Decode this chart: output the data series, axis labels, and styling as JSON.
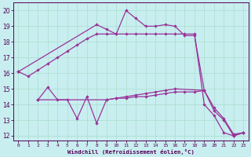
{
  "xlabel": "Windchill (Refroidissement éolien,°C)",
  "bg_color": "#c8eef0",
  "grid_color": "#aaddcc",
  "line_color": "#993399",
  "xlim_min": -0.5,
  "xlim_max": 23.5,
  "ylim_min": 11.7,
  "ylim_max": 20.5,
  "xticks": [
    0,
    1,
    2,
    3,
    4,
    5,
    6,
    7,
    8,
    9,
    10,
    11,
    12,
    13,
    14,
    15,
    16,
    17,
    18,
    19,
    20,
    21,
    22,
    23
  ],
  "yticks": [
    12,
    13,
    14,
    15,
    16,
    17,
    18,
    19,
    20
  ],
  "line1_x": [
    0,
    1,
    2,
    3,
    4,
    5,
    6,
    7,
    8,
    9,
    10,
    11,
    12,
    13,
    14,
    15,
    16,
    17,
    18,
    19,
    20,
    21,
    22,
    23
  ],
  "line1_y": [
    16.1,
    15.8,
    16.2,
    16.6,
    17.0,
    17.4,
    17.8,
    18.2,
    18.5,
    18.5,
    18.5,
    18.5,
    18.5,
    18.5,
    18.5,
    18.5,
    18.5,
    18.5,
    18.5,
    14.0,
    13.3,
    12.2,
    12.0,
    12.2
  ],
  "line2_x": [
    0,
    8,
    9,
    10,
    11,
    12,
    13,
    14,
    15,
    16,
    17,
    18,
    19
  ],
  "line2_y": [
    16.1,
    19.1,
    18.8,
    18.5,
    20.0,
    19.5,
    19.0,
    19.0,
    19.1,
    19.0,
    18.4,
    18.4,
    14.9
  ],
  "line3_x": [
    2,
    3,
    4,
    5,
    6,
    7,
    8,
    9,
    10,
    11,
    12,
    13,
    14,
    15,
    16,
    17,
    18,
    19,
    20,
    21,
    22,
    23
  ],
  "line3_y": [
    14.3,
    15.1,
    14.3,
    14.3,
    13.1,
    14.5,
    12.8,
    14.3,
    14.4,
    14.4,
    14.5,
    14.5,
    14.6,
    14.7,
    14.8,
    14.8,
    14.8,
    14.9,
    13.6,
    13.0,
    12.0,
    12.2
  ],
  "line4_x": [
    2,
    9,
    10,
    11,
    12,
    13,
    14,
    15,
    16,
    19,
    20,
    21,
    22,
    23
  ],
  "line4_y": [
    14.3,
    14.3,
    14.4,
    14.5,
    14.6,
    14.7,
    14.8,
    14.9,
    15.0,
    14.9,
    13.8,
    13.1,
    12.1,
    12.2
  ]
}
